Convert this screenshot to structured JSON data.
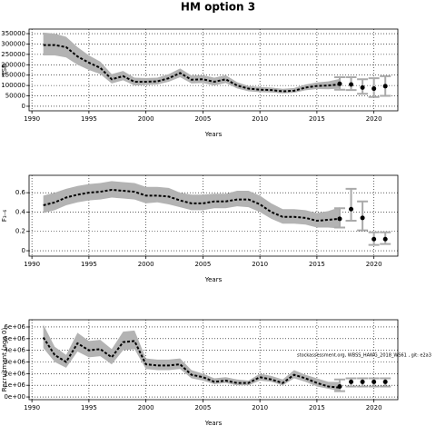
{
  "chart_data": [
    {
      "type": "line",
      "title": "HM option 3",
      "y_label": "SSB",
      "x_label": "Years",
      "x": [
        1991,
        1992,
        1993,
        1994,
        1995,
        1996,
        1997,
        1998,
        1999,
        2000,
        2001,
        2002,
        2003,
        2004,
        2005,
        2006,
        2007,
        2008,
        2009,
        2010,
        2011,
        2012,
        2013,
        2014,
        2015,
        2016,
        2017
      ],
      "values": [
        295000,
        295000,
        285000,
        240000,
        210000,
        185000,
        130000,
        145000,
        118000,
        118000,
        120000,
        135000,
        160000,
        128000,
        130000,
        118000,
        130000,
        100000,
        85000,
        80000,
        78000,
        72000,
        75000,
        90000,
        98000,
        100000,
        105000
      ],
      "lower": [
        245000,
        245000,
        235000,
        200000,
        175000,
        155000,
        110000,
        125000,
        100000,
        102000,
        105000,
        118000,
        140000,
        110000,
        112000,
        100000,
        112000,
        86000,
        72000,
        68000,
        66000,
        62000,
        65000,
        77000,
        83000,
        82000,
        85000
      ],
      "upper": [
        355000,
        350000,
        335000,
        285000,
        245000,
        215000,
        155000,
        170000,
        138000,
        136000,
        138000,
        155000,
        182000,
        148000,
        150000,
        138000,
        150000,
        116000,
        98000,
        93000,
        90000,
        84000,
        88000,
        105000,
        115000,
        120000,
        132000
      ],
      "color": "#000000",
      "band_color": "#b3b3b3",
      "points": {
        "x": [
          2017,
          2018,
          2019,
          2020,
          2021
        ],
        "values": [
          108000,
          105000,
          90000,
          85000,
          97000
        ],
        "lower": [
          80000,
          78000,
          60000,
          45000,
          50000
        ],
        "upper": [
          140000,
          140000,
          130000,
          135000,
          145000
        ],
        "color": "#000000",
        "error_color": "#aaaaaa"
      },
      "xlim": [
        1989.75,
        2022.1
      ],
      "xticks": [
        1990,
        1995,
        2000,
        2005,
        2010,
        2015,
        2020
      ],
      "ylim": [
        -22000,
        372000
      ],
      "yticks": [
        0,
        50000,
        100000,
        150000,
        200000,
        250000,
        300000,
        350000
      ],
      "grid": true
    },
    {
      "type": "line",
      "y_label": "F₃₋₆",
      "x_label": "Years",
      "x": [
        1991,
        1992,
        1993,
        1994,
        1995,
        1996,
        1997,
        1998,
        1999,
        2000,
        2001,
        2002,
        2003,
        2004,
        2005,
        2006,
        2007,
        2008,
        2009,
        2010,
        2011,
        2012,
        2013,
        2014,
        2015,
        2016,
        2017
      ],
      "values": [
        0.47,
        0.5,
        0.55,
        0.58,
        0.6,
        0.61,
        0.63,
        0.62,
        0.61,
        0.57,
        0.57,
        0.56,
        0.52,
        0.49,
        0.49,
        0.51,
        0.51,
        0.53,
        0.53,
        0.48,
        0.4,
        0.35,
        0.35,
        0.34,
        0.31,
        0.32,
        0.33
      ],
      "lower": [
        0.39,
        0.42,
        0.47,
        0.5,
        0.52,
        0.53,
        0.55,
        0.54,
        0.53,
        0.49,
        0.5,
        0.48,
        0.45,
        0.42,
        0.42,
        0.44,
        0.44,
        0.46,
        0.45,
        0.4,
        0.33,
        0.28,
        0.28,
        0.27,
        0.24,
        0.24,
        0.23
      ],
      "upper": [
        0.57,
        0.6,
        0.64,
        0.67,
        0.69,
        0.7,
        0.72,
        0.71,
        0.7,
        0.66,
        0.66,
        0.65,
        0.6,
        0.58,
        0.58,
        0.59,
        0.59,
        0.62,
        0.62,
        0.57,
        0.49,
        0.43,
        0.43,
        0.42,
        0.39,
        0.41,
        0.45
      ],
      "color": "#000000",
      "band_color": "#b3b3b3",
      "points": {
        "x": [
          2017,
          2018,
          2019,
          2020,
          2021
        ],
        "values": [
          0.33,
          0.43,
          0.34,
          0.12,
          0.12
        ],
        "lower": [
          0.24,
          0.31,
          0.21,
          0.06,
          0.07
        ],
        "upper": [
          0.44,
          0.64,
          0.51,
          0.19,
          0.19
        ],
        "color": "#000000",
        "error_color": "#aaaaaa"
      },
      "xlim": [
        1989.75,
        2022.1
      ],
      "xticks": [
        1990,
        1995,
        2000,
        2005,
        2010,
        2015,
        2020
      ],
      "ylim": [
        -0.056,
        0.78
      ],
      "yticks": [
        0,
        0.2,
        0.4,
        0.6
      ],
      "grid": true
    },
    {
      "type": "line",
      "y_label": "Recruitment (age 0)",
      "x_label": "Years",
      "annotation": "stockassessment.org, WBSS_HAWG_2018_WS61 , git: e2a3",
      "x": [
        1991,
        1992,
        1993,
        1994,
        1995,
        1996,
        1997,
        1998,
        1999,
        2000,
        2001,
        2002,
        2003,
        2004,
        2005,
        2006,
        2007,
        2008,
        2009,
        2010,
        2011,
        2012,
        2013,
        2014,
        2015,
        2016,
        2017
      ],
      "values": [
        5100000,
        3600000,
        3000000,
        4600000,
        4000000,
        4100000,
        3400000,
        4700000,
        4800000,
        2800000,
        2700000,
        2700000,
        2800000,
        1900000,
        1700000,
        1300000,
        1400000,
        1200000,
        1200000,
        1700000,
        1500000,
        1200000,
        1900000,
        1600000,
        1200000,
        900000,
        800000
      ],
      "lower": [
        4200000,
        3000000,
        2500000,
        3900000,
        3400000,
        3500000,
        2800000,
        4000000,
        4100000,
        2400000,
        2300000,
        2300000,
        2400000,
        1600000,
        1400000,
        1100000,
        1200000,
        1000000,
        1000000,
        1400000,
        1300000,
        1000000,
        1600000,
        1300000,
        900000,
        700000,
        500000
      ],
      "upper": [
        6200000,
        4300000,
        3600000,
        5500000,
        4800000,
        4900000,
        4100000,
        5600000,
        5700000,
        3300000,
        3200000,
        3200000,
        3300000,
        2300000,
        2000000,
        1600000,
        1700000,
        1500000,
        1400000,
        2000000,
        1800000,
        1500000,
        2300000,
        1900000,
        1600000,
        1300000,
        1300000
      ],
      "color": "#000000",
      "band_color": "#b3b3b3",
      "points": {
        "x": [
          2017,
          2018,
          2019,
          2020,
          2021
        ],
        "values": [
          900000,
          1300000,
          1300000,
          1300000,
          1300000
        ],
        "lower": [
          500000,
          900000,
          900000,
          900000,
          900000
        ],
        "upper": [
          1500000,
          1600000,
          1600000,
          1600000,
          1600000
        ],
        "color": "#000000",
        "error_color": "#aaaaaa"
      },
      "xlim": [
        1989.75,
        2022.1
      ],
      "xticks": [
        1990,
        1995,
        2000,
        2005,
        2010,
        2015,
        2020
      ],
      "ylim": [
        -230000,
        6620000
      ],
      "yticks": [
        {
          "value": 0,
          "label": "0e+00"
        },
        {
          "value": 1000000,
          "label": "1e+06"
        },
        {
          "value": 2000000,
          "label": "2e+06"
        },
        {
          "value": 3000000,
          "label": "3e+06"
        },
        {
          "value": 4000000,
          "label": "4e+06"
        },
        {
          "value": 5000000,
          "label": "5e+06"
        },
        {
          "value": 6000000,
          "label": "6e+06"
        }
      ],
      "grid": true
    }
  ]
}
